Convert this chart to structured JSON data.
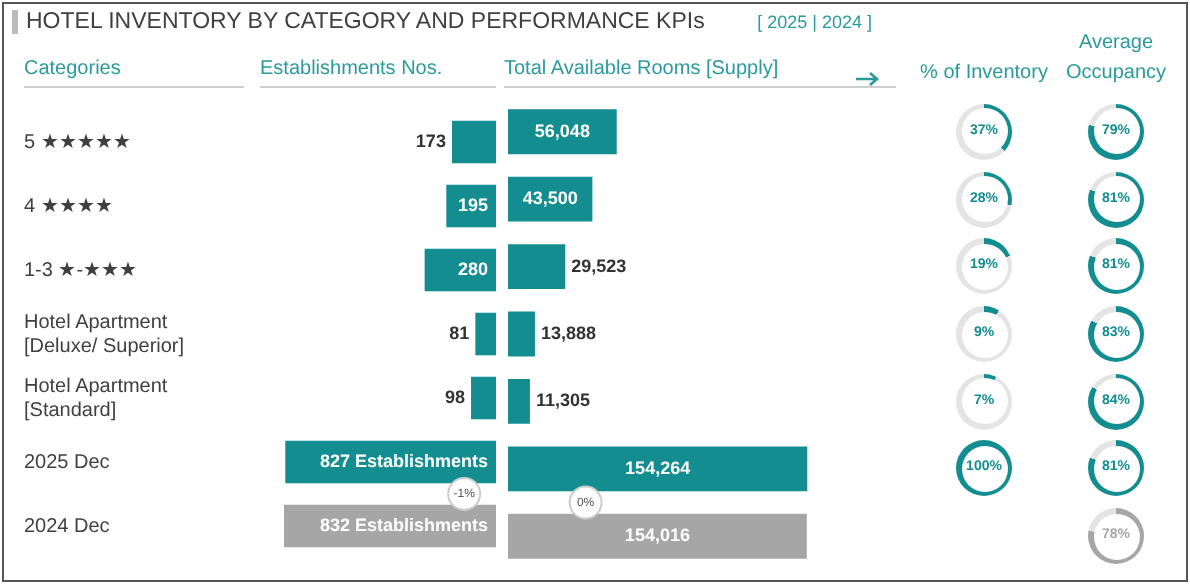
{
  "chart_data": [
    {
      "type": "bar",
      "orientation": "horizontal",
      "title": "HOTEL INVENTORY BY CATEGORY AND PERFORMANCE KPIs",
      "ylabel": "Categories",
      "xlabel": "Establishments Nos.",
      "categories": [
        "5 ★★★★★",
        "4 ★★★★",
        "1-3 ★-★★★",
        "Hotel Apartment\n[Deluxe/ Superior]",
        "Hotel Apartment\n[Standard]",
        "2025 Dec",
        "2024 Dec"
      ],
      "values": [
        173,
        195,
        280,
        81,
        98,
        827,
        832
      ],
      "colors": [
        "#138d90",
        "#138d90",
        "#138d90",
        "#138d90",
        "#138d90",
        "#138d90",
        "#a6a6a6"
      ],
      "xlim": [
        832,
        0
      ],
      "value_labels": [
        "173",
        "195",
        "280",
        "81",
        "98",
        "827 Establishments",
        "832 Establishments"
      ],
      "annotations": [
        "-1%"
      ],
      "tick_labels": "y"
    },
    {
      "type": "bar",
      "orientation": "horizontal",
      "subtitle": "[ 2025 | 2024 ]",
      "xlabel": "Total Available Rooms [Supply]",
      "categories": [
        null,
        null,
        null,
        null,
        null,
        null,
        null
      ],
      "values": [
        56048,
        43500,
        29523,
        13888,
        11305,
        154264,
        154016
      ],
      "colors": [
        "#138d90",
        "#138d90",
        "#138d90",
        "#138d90",
        "#138d90",
        "#138d90",
        "#a6a6a6"
      ],
      "value_labels": [
        "56,048",
        "43,500",
        "29,523",
        "13,888",
        "11,305",
        "154,264",
        "154,016"
      ],
      "annotations": [
        "0%"
      ],
      "tick_labels": false
    },
    {
      "type": "other",
      "title": "% of Inventory",
      "values": [
        37,
        28,
        19,
        9,
        7,
        100,
        null
      ],
      "value_labels": [
        "37%",
        "28%",
        "19%",
        "9%",
        "7%",
        "100%",
        null
      ],
      "colors": [
        "#138d90",
        "#138d90",
        "#138d90",
        "#138d90",
        "#138d90",
        "#138d90",
        null
      ]
    },
    {
      "type": "other",
      "title": "Average Occupancy",
      "values": [
        79,
        81,
        81,
        83,
        84,
        81,
        78
      ],
      "value_labels": [
        "79%",
        "81%",
        "81%",
        "83%",
        "84%",
        "81%",
        "78%"
      ],
      "colors": [
        "#138d90",
        "#138d90",
        "#138d90",
        "#138d90",
        "#138d90",
        "#138d90",
        "#a6a6a6"
      ]
    }
  ]
}
